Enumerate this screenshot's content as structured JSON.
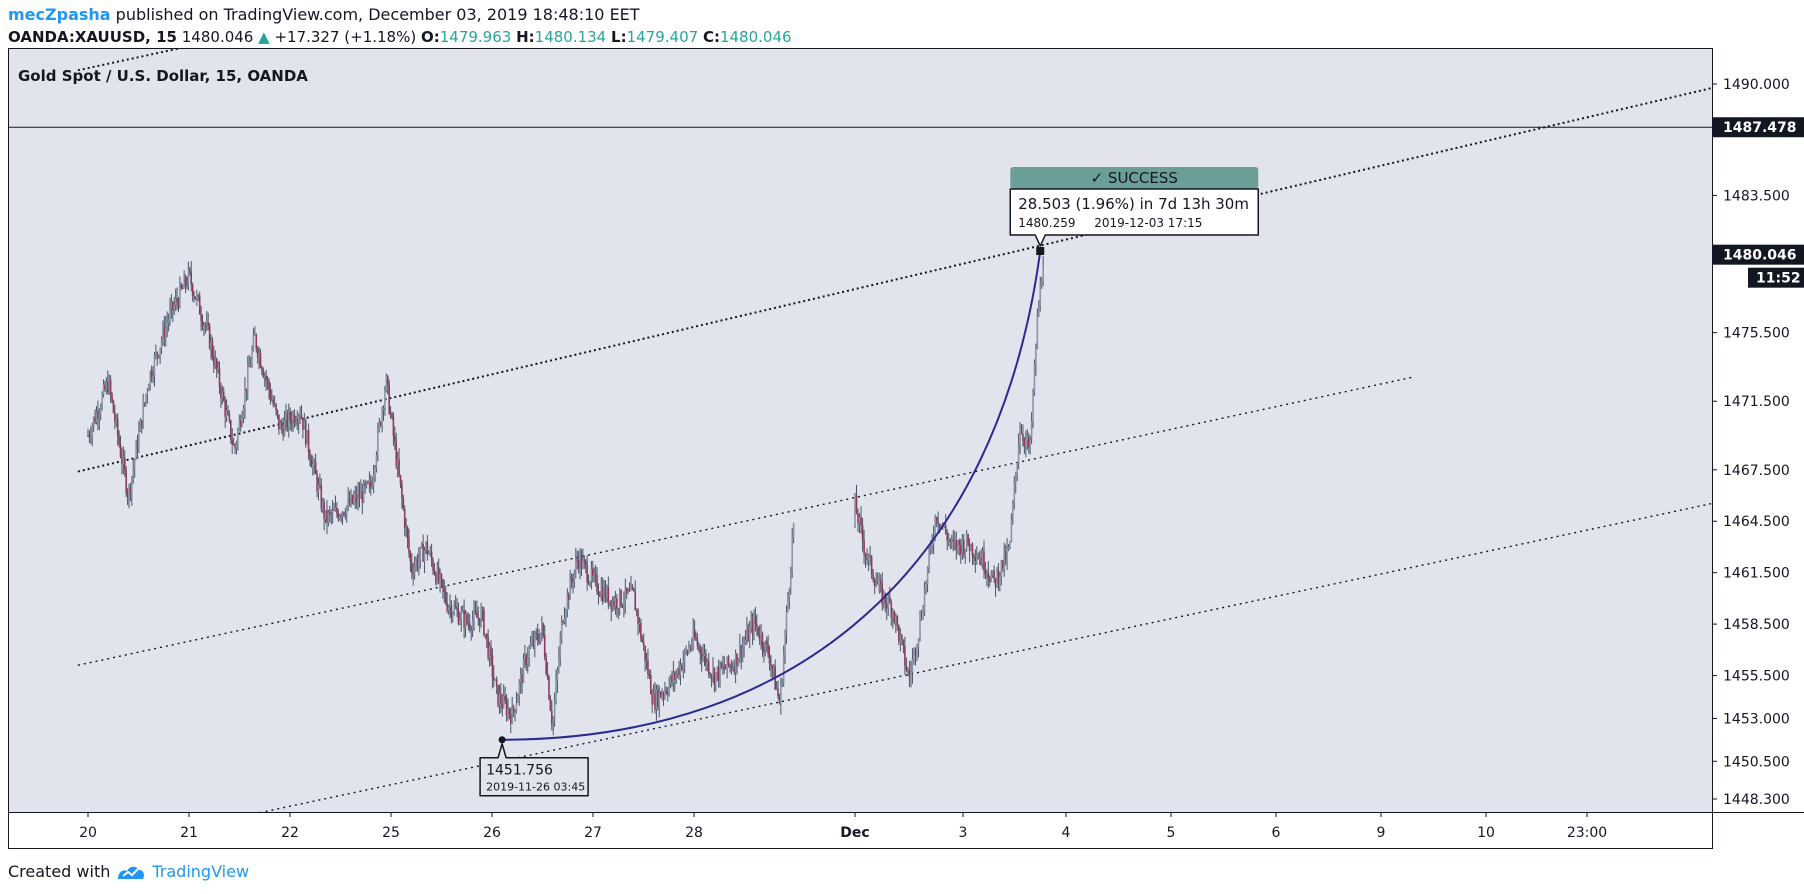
{
  "header": {
    "author": "mecZpasha",
    "published_text": "published on TradingView.com, December 03, 2019 18:48:10 EET"
  },
  "ohlc": {
    "symbol": "OANDA:XAUUSD, 15",
    "price": "1480.046",
    "arrow": "▲",
    "change": "+17.327 (+1.18%)",
    "o_label": "O:",
    "o_value": "1479.963",
    "h_label": "H:",
    "h_value": "1480.134",
    "l_label": "L:",
    "l_value": "1479.407",
    "c_label": "C:",
    "c_value": "1480.046"
  },
  "footer": {
    "created_with": "Created with",
    "brand": "TradingView"
  },
  "colors": {
    "bg": "#e1e4ed",
    "up": "#26a69a",
    "candle": "#4a5568",
    "arc": "#2c2a8e",
    "success": "#6b9e97"
  },
  "chart_data": {
    "type": "candlestick",
    "title": "Gold Spot / U.S. Dollar, 15, OANDA",
    "x_ticks": [
      "20",
      "21",
      "22",
      "25",
      "26",
      "27",
      "28",
      "Dec",
      "3",
      "4",
      "5",
      "6",
      "9",
      "10",
      "23:00"
    ],
    "y_ticks": [
      "1490.000",
      "1483.500",
      "1475.500",
      "1471.500",
      "1467.500",
      "1464.500",
      "1461.500",
      "1458.500",
      "1455.500",
      "1453.000",
      "1450.500",
      "1448.300"
    ],
    "ylim": [
      1447.3,
      1491.2
    ],
    "price_line": {
      "label": "1480.046",
      "value": 1480.046
    },
    "countdown": "11:52",
    "horizontal_line": {
      "label": "1487.478",
      "value": 1487.478
    },
    "price_path": [
      [
        0,
        1469.5
      ],
      [
        0.2,
        1472.6
      ],
      [
        0.4,
        1466.0
      ],
      [
        0.6,
        1472.8
      ],
      [
        0.8,
        1476.4
      ],
      [
        1.0,
        1478.8
      ],
      [
        1.2,
        1475.2
      ],
      [
        1.45,
        1468.6
      ],
      [
        1.65,
        1475.2
      ],
      [
        1.9,
        1469.9
      ],
      [
        2.1,
        1471.0
      ],
      [
        2.35,
        1464.6
      ],
      [
        2.6,
        1465.5
      ],
      [
        2.8,
        1466.5
      ],
      [
        2.95,
        1472.7
      ],
      [
        3.2,
        1461.7
      ],
      [
        3.35,
        1463.0
      ],
      [
        3.55,
        1459.8
      ],
      [
        3.75,
        1458.6
      ],
      [
        3.9,
        1459.0
      ],
      [
        4.05,
        1454.3
      ],
      [
        4.2,
        1453.2
      ],
      [
        4.35,
        1456.8
      ],
      [
        4.5,
        1458.2
      ],
      [
        4.6,
        1452.6
      ],
      [
        4.7,
        1459.0
      ],
      [
        4.85,
        1462.4
      ],
      [
        5.0,
        1461.0
      ],
      [
        5.2,
        1459.8
      ],
      [
        5.4,
        1460.2
      ],
      [
        5.6,
        1454.0
      ],
      [
        5.8,
        1455.3
      ],
      [
        6.0,
        1457.7
      ],
      [
        6.2,
        1455.5
      ],
      [
        6.4,
        1456.3
      ],
      [
        6.6,
        1458.6
      ],
      [
        6.75,
        1456.6
      ],
      [
        6.85,
        1453.8
      ],
      [
        7.0,
        1465.4
      ],
      [
        7.1,
        1462.6
      ],
      [
        7.25,
        1460.1
      ],
      [
        7.35,
        1459.4
      ],
      [
        7.5,
        1455.3
      ],
      [
        7.6,
        1458.5
      ],
      [
        7.75,
        1465.0
      ],
      [
        7.9,
        1463.0
      ],
      [
        8.05,
        1463.2
      ],
      [
        8.2,
        1462.2
      ],
      [
        8.3,
        1460.9
      ],
      [
        8.45,
        1462.8
      ],
      [
        8.55,
        1470.0
      ],
      [
        8.65,
        1468.6
      ],
      [
        8.72,
        1476.0
      ],
      [
        8.78,
        1480.0
      ]
    ],
    "channel_lines": [
      {
        "style": "dotted-heavy",
        "from": [
          -0.1,
          1467.4
        ],
        "to": [
          15.7,
          1490.5
        ]
      },
      {
        "style": "dotted-heavy",
        "from": [
          -0.1,
          1490.8
        ],
        "to": [
          1.0,
          1492.2
        ]
      },
      {
        "style": "dotted",
        "from": [
          -0.1,
          1456.1
        ],
        "to": [
          12.3,
          1472.9
        ]
      },
      {
        "style": "dotted",
        "from": [
          1.7,
          1447.5
        ],
        "to": [
          15.7,
          1466.2
        ]
      }
    ],
    "projection_arc": {
      "start": {
        "x": 4.1,
        "y": 1451.756
      },
      "end": {
        "x": 8.75,
        "y": 1480.259
      }
    },
    "annotations": {
      "low_price": "1451.756",
      "low_time": "2019-11-26 03:45",
      "success_label": "SUCCESS",
      "success_check": "✓",
      "target_main": "28.503 (1.96%) in 7d 13h 30m",
      "target_price": "1480.259",
      "target_time": "2019-12-03  17:15"
    }
  }
}
